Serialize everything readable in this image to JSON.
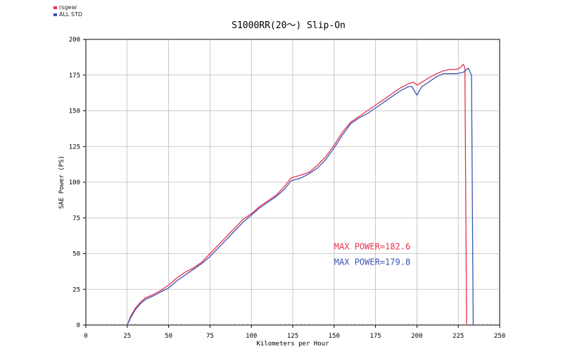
{
  "chart_data": {
    "type": "line",
    "title": "S1000RR(20～) Slip-On",
    "xlabel": "Kilometers per Hour",
    "ylabel": "SAE Power (PS)",
    "xlim": [
      0,
      250
    ],
    "ylim": [
      0,
      200
    ],
    "xticks": [
      0,
      25,
      50,
      75,
      100,
      125,
      150,
      175,
      200,
      225,
      250
    ],
    "yticks": [
      0,
      25,
      50,
      75,
      100,
      125,
      150,
      175,
      200
    ],
    "grid": true,
    "legend_position": "top-left",
    "series": [
      {
        "name": "rsgear",
        "color": "#e8314a",
        "x": [
          25,
          27,
          30,
          33,
          36,
          40,
          45,
          50,
          55,
          60,
          65,
          70,
          75,
          80,
          85,
          90,
          95,
          100,
          105,
          110,
          115,
          120,
          124,
          127,
          130,
          135,
          140,
          145,
          150,
          155,
          160,
          165,
          170,
          175,
          180,
          185,
          190,
          195,
          198,
          200,
          203,
          207,
          212,
          216,
          220,
          224,
          226,
          228,
          229,
          230
        ],
        "y": [
          0,
          6,
          12,
          16,
          19,
          21,
          24,
          28,
          33,
          37,
          40,
          44,
          50,
          56,
          62,
          68,
          74,
          78,
          83,
          87,
          91,
          97,
          103,
          104,
          105,
          107,
          112,
          118,
          126,
          135,
          142,
          146,
          150,
          154,
          158,
          162,
          166,
          169,
          170,
          168,
          170,
          173,
          176,
          178,
          179,
          179,
          180,
          182.6,
          180,
          0
        ]
      },
      {
        "name": "ALL STD",
        "color": "#3a55b5",
        "x": [
          25,
          27,
          30,
          33,
          36,
          40,
          45,
          50,
          55,
          60,
          65,
          70,
          75,
          80,
          85,
          90,
          95,
          100,
          105,
          110,
          115,
          120,
          124,
          127,
          130,
          135,
          140,
          145,
          150,
          155,
          160,
          165,
          170,
          175,
          180,
          185,
          190,
          195,
          197,
          200,
          203,
          207,
          212,
          216,
          220,
          224,
          228,
          231,
          233,
          234
        ],
        "y": [
          0,
          5,
          11,
          15,
          18,
          20,
          23,
          26,
          31,
          35,
          39,
          43,
          48,
          54,
          60,
          66,
          72,
          77,
          82,
          86,
          90,
          95,
          101,
          102,
          103,
          106,
          110,
          116,
          124,
          133,
          141,
          145,
          148,
          152,
          156,
          160,
          164,
          167,
          167,
          161,
          167,
          170,
          174,
          176,
          176,
          176,
          177,
          179.8,
          175,
          0
        ]
      }
    ],
    "annotations": [
      {
        "text": "MAX POWER=182.6",
        "color": "#e8314a",
        "x": 150,
        "y": 53
      },
      {
        "text": "MAX POWER=179.8",
        "color": "#3a55b5",
        "x": 150,
        "y": 42
      }
    ]
  }
}
